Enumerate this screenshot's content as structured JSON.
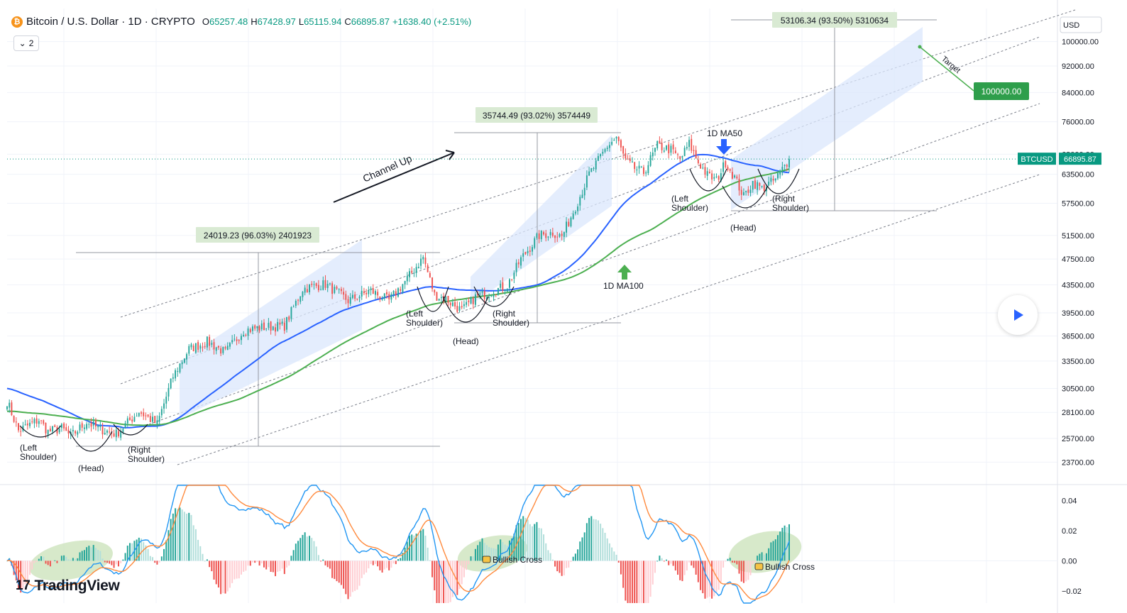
{
  "header": {
    "symbol": "Bitcoin / U.S. Dollar · 1D · CRYPTO",
    "open_label": "O",
    "open": "65257.48",
    "high_label": "H",
    "high": "67428.97",
    "low_label": "L",
    "low": "65115.94",
    "close_label": "C",
    "close": "66895.87",
    "change": "+1638.40 (+2.51%)",
    "collapse_count": "2"
  },
  "brand": {
    "name": "TradingView"
  },
  "colors": {
    "up": "#26a69a",
    "down": "#ef5350",
    "ma50": "#2962ff",
    "ma100": "#4caf50",
    "macd": "#2196f3",
    "signal": "#ff8a3d",
    "accent_green": "#089981"
  },
  "chart_data": [
    {
      "type": "candlestick",
      "title": "Bitcoin / U.S. Dollar · 1D · CRYPTO",
      "currency": "USD",
      "price_scale": "log",
      "y_ticks": [
        "100000.00",
        "92000.00",
        "84000.00",
        "76000.00",
        "68000.00",
        "63500.00",
        "57500.00",
        "51500.00",
        "47500.00",
        "43500.00",
        "39500.00",
        "36500.00",
        "33500.00",
        "30500.00",
        "28100.00",
        "25700.00",
        "23700.00"
      ],
      "ylim": [
        22000,
        112000
      ],
      "last_price_labels": {
        "symbol": "BTCUSD",
        "price": "66895.87"
      },
      "pivots": [
        {
          "i": 0,
          "p": 29200
        },
        {
          "i": 5,
          "p": 26400
        },
        {
          "i": 14,
          "p": 27400
        },
        {
          "i": 18,
          "p": 26300
        },
        {
          "i": 24,
          "p": 26600
        },
        {
          "i": 28,
          "p": 25900
        },
        {
          "i": 35,
          "p": 27200
        },
        {
          "i": 40,
          "p": 26600
        },
        {
          "i": 48,
          "p": 26100
        },
        {
          "i": 58,
          "p": 28200
        },
        {
          "i": 66,
          "p": 27000
        },
        {
          "i": 73,
          "p": 31800
        },
        {
          "i": 80,
          "p": 34900
        },
        {
          "i": 88,
          "p": 35800
        },
        {
          "i": 96,
          "p": 34500
        },
        {
          "i": 104,
          "p": 37200
        },
        {
          "i": 112,
          "p": 37600
        },
        {
          "i": 122,
          "p": 37800
        },
        {
          "i": 130,
          "p": 42900
        },
        {
          "i": 140,
          "p": 43600
        },
        {
          "i": 150,
          "p": 41200
        },
        {
          "i": 160,
          "p": 42600
        },
        {
          "i": 168,
          "p": 41200
        },
        {
          "i": 176,
          "p": 44400
        },
        {
          "i": 183,
          "p": 47800
        },
        {
          "i": 188,
          "p": 42000
        },
        {
          "i": 193,
          "p": 41400
        },
        {
          "i": 200,
          "p": 39800
        },
        {
          "i": 206,
          "p": 41700
        },
        {
          "i": 212,
          "p": 42300
        },
        {
          "i": 220,
          "p": 43400
        },
        {
          "i": 226,
          "p": 47500
        },
        {
          "i": 234,
          "p": 51500
        },
        {
          "i": 240,
          "p": 52000
        },
        {
          "i": 244,
          "p": 51300
        },
        {
          "i": 250,
          "p": 56800
        },
        {
          "i": 256,
          "p": 63500
        },
        {
          "i": 260,
          "p": 66500
        },
        {
          "i": 264,
          "p": 69900
        },
        {
          "i": 268,
          "p": 72000
        },
        {
          "i": 272,
          "p": 66500
        },
        {
          "i": 276,
          "p": 64800
        },
        {
          "i": 280,
          "p": 63900
        },
        {
          "i": 286,
          "p": 70000
        },
        {
          "i": 292,
          "p": 69000
        },
        {
          "i": 296,
          "p": 66800
        },
        {
          "i": 300,
          "p": 70500
        },
        {
          "i": 304,
          "p": 66200
        },
        {
          "i": 308,
          "p": 63300
        },
        {
          "i": 312,
          "p": 62200
        },
        {
          "i": 316,
          "p": 66200
        },
        {
          "i": 320,
          "p": 62800
        },
        {
          "i": 324,
          "p": 58800
        },
        {
          "i": 328,
          "p": 61800
        },
        {
          "i": 332,
          "p": 60500
        },
        {
          "i": 338,
          "p": 62400
        },
        {
          "i": 344,
          "p": 66895
        }
      ],
      "n_bars": 345,
      "annotations": {
        "channel_label": "Channel Up",
        "ma50_label": "1D MA50",
        "ma100_label": "1D MA100",
        "target_label": "Target",
        "target_value": "100000.00",
        "measure_1": "24019.23 (96.03%) 2401923",
        "measure_2": "35744.49 (93.02%) 3574449",
        "measure_3": "53106.34 (93.50%) 5310634",
        "left_shoulder": "(Left Shoulder)",
        "head": "(Head)",
        "right_shoulder": "(Right Shoulder)"
      }
    },
    {
      "type": "macd",
      "y_ticks": [
        "0.04",
        "0.02",
        "0.00",
        "−0.02"
      ],
      "ylim": [
        -0.028,
        0.05
      ],
      "bullish_cross_label": "Bullish Cross"
    }
  ]
}
